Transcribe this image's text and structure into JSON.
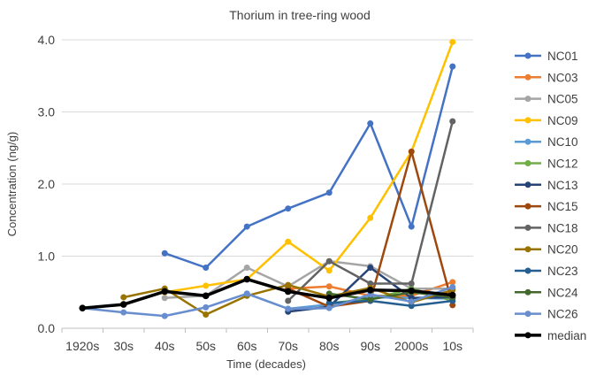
{
  "chart_data": {
    "type": "line",
    "title": "Thorium in tree-ring wood",
    "xlabel": "Time (decades)",
    "ylabel": "Concentration (ng/g)",
    "categories": [
      "1920s",
      "30s",
      "40s",
      "50s",
      "60s",
      "70s",
      "80s",
      "90s",
      "2000s",
      "10s"
    ],
    "ylim": [
      0,
      4
    ],
    "yticks": [
      "0.0",
      "1.0",
      "2.0",
      "3.0",
      "4.0"
    ],
    "grid": true,
    "legend_position": "right",
    "series": [
      {
        "name": "NC01",
        "color": "#4472C4",
        "values": [
          null,
          null,
          1.04,
          0.84,
          1.41,
          1.66,
          1.88,
          2.84,
          1.41,
          3.63
        ]
      },
      {
        "name": "NC03",
        "color": "#ED7D31",
        "values": [
          null,
          null,
          null,
          null,
          null,
          0.55,
          0.58,
          0.45,
          0.45,
          0.64
        ]
      },
      {
        "name": "NC05",
        "color": "#A5A5A5",
        "values": [
          null,
          null,
          0.42,
          0.45,
          0.84,
          0.58,
          0.93,
          0.86,
          0.55,
          0.55
        ]
      },
      {
        "name": "NC09",
        "color": "#FFC000",
        "values": [
          null,
          null,
          0.5,
          0.59,
          0.68,
          1.2,
          0.8,
          1.53,
          2.45,
          3.97
        ]
      },
      {
        "name": "NC10",
        "color": "#5B9BD5",
        "values": [
          null,
          null,
          null,
          null,
          0.48,
          0.27,
          0.33,
          0.43,
          0.42,
          0.41
        ]
      },
      {
        "name": "NC12",
        "color": "#70AD47",
        "values": [
          null,
          null,
          null,
          null,
          null,
          null,
          0.35,
          0.4,
          0.55,
          0.38
        ]
      },
      {
        "name": "NC13",
        "color": "#264478",
        "values": [
          null,
          null,
          null,
          null,
          null,
          0.23,
          0.3,
          0.84,
          0.42,
          0.43
        ]
      },
      {
        "name": "NC15",
        "color": "#9E480E",
        "values": [
          null,
          null,
          null,
          null,
          null,
          0.55,
          0.3,
          0.38,
          2.45,
          0.32
        ]
      },
      {
        "name": "NC18",
        "color": "#636363",
        "values": [
          null,
          null,
          null,
          null,
          null,
          0.38,
          0.93,
          0.62,
          0.62,
          2.87
        ]
      },
      {
        "name": "NC20",
        "color": "#997300",
        "values": [
          null,
          0.43,
          0.55,
          0.19,
          0.45,
          0.6,
          0.44,
          0.56,
          0.36,
          0.53
        ]
      },
      {
        "name": "NC23",
        "color": "#255E91",
        "values": [
          null,
          null,
          null,
          null,
          null,
          null,
          0.35,
          0.38,
          0.31,
          0.38
        ]
      },
      {
        "name": "NC24",
        "color": "#43682B",
        "values": [
          null,
          null,
          null,
          null,
          null,
          null,
          0.48,
          0.4,
          0.5,
          0.43
        ]
      },
      {
        "name": "NC26",
        "color": "#698ED0",
        "values": [
          0.28,
          0.22,
          0.17,
          0.29,
          0.48,
          0.27,
          0.28,
          0.47,
          0.37,
          0.57
        ]
      },
      {
        "name": "median",
        "color": "#000000",
        "values": [
          0.28,
          0.33,
          0.51,
          0.45,
          0.68,
          0.51,
          0.42,
          0.53,
          0.52,
          0.46
        ]
      }
    ]
  }
}
